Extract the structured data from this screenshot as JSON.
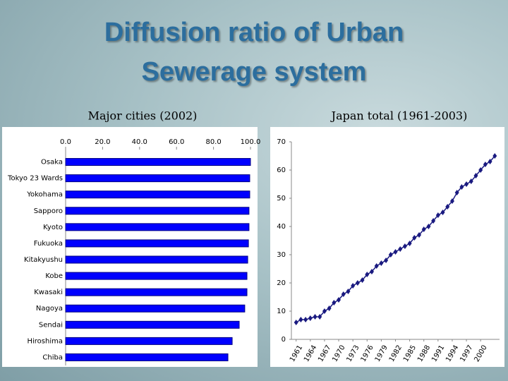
{
  "title": "Diffusion ratio of Urban Sewerage system",
  "chart_data": [
    {
      "type": "hbar",
      "subtitle": "Major cities (2002)",
      "categories": [
        "Osaka",
        "Tokyo 23 Wards",
        "Yokohama",
        "Sapporo",
        "Kyoto",
        "Fukuoka",
        "Kitakyushu",
        "Kobe",
        "Kwasaki",
        "Nagoya",
        "Sendai",
        "Hiroshima",
        "Chiba"
      ],
      "values": [
        100,
        99.6,
        99.6,
        99.2,
        99.2,
        98.9,
        98.5,
        98.1,
        98.1,
        96.9,
        93.9,
        90.1,
        87.8
      ],
      "color": "#0000ff",
      "edge": "#000080",
      "xlim": [
        0,
        100
      ],
      "xticks": [
        {
          "value": 0,
          "label": "0.0"
        },
        {
          "value": 20,
          "label": "20.0"
        },
        {
          "value": 40,
          "label": "40.0"
        },
        {
          "value": 60,
          "label": "60.0"
        },
        {
          "value": 80,
          "label": "80.0"
        },
        {
          "value": 100,
          "label": "100.0"
        }
      ],
      "grid": false
    },
    {
      "type": "line",
      "subtitle": "Japan total (1961-2003)",
      "x": [
        1961,
        1962,
        1963,
        1964,
        1965,
        1966,
        1967,
        1968,
        1969,
        1970,
        1971,
        1972,
        1973,
        1974,
        1975,
        1976,
        1977,
        1978,
        1979,
        1980,
        1981,
        1982,
        1983,
        1984,
        1985,
        1986,
        1987,
        1988,
        1989,
        1990,
        1991,
        1992,
        1993,
        1994,
        1995,
        1996,
        1997,
        1998,
        1999,
        2000,
        2001,
        2002,
        2003
      ],
      "values": [
        6,
        7,
        7,
        7.5,
        8,
        8,
        10,
        11,
        13,
        14,
        16,
        17,
        19,
        20,
        21,
        23,
        24,
        26,
        27,
        28,
        30,
        31,
        32,
        33,
        34,
        36,
        37,
        39,
        40,
        42,
        44,
        45,
        47,
        49,
        52,
        54,
        55,
        56,
        58,
        60,
        62,
        63,
        65
      ],
      "color": "#1a1a80",
      "xlim": [
        1960,
        2004
      ],
      "xticks": [
        1961,
        1964,
        1967,
        1970,
        1973,
        1976,
        1979,
        1982,
        1985,
        1988,
        1991,
        1994,
        1997,
        2000
      ],
      "ylim": [
        0,
        70
      ],
      "yticks": [
        0,
        10,
        20,
        30,
        40,
        50,
        60,
        70
      ],
      "grid": false
    }
  ]
}
